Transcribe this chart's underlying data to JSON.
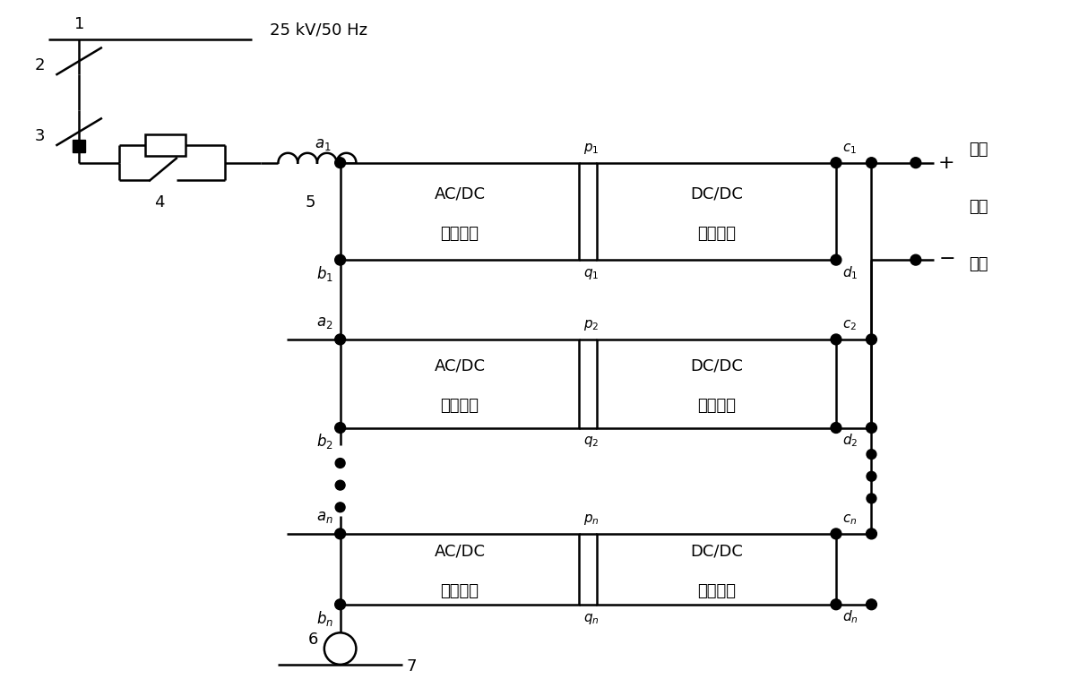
{
  "bg_color": "#ffffff",
  "line_color": "#000000",
  "lw": 1.8,
  "fig_width": 11.94,
  "fig_height": 7.58,
  "voltage_label": "25 kV/50 Hz",
  "rows": [
    {
      "a_lbl": "a_1",
      "b_lbl": "b_1",
      "p_lbl": "p_1",
      "q_lbl": "q_1",
      "c_lbl": "c_1",
      "d_lbl": "d_1"
    },
    {
      "a_lbl": "a_2",
      "b_lbl": "b_2",
      "p_lbl": "p_2",
      "q_lbl": "q_2",
      "c_lbl": "c_2",
      "d_lbl": "d_2"
    },
    {
      "a_lbl": "a_n",
      "b_lbl": "b_n",
      "p_lbl": "p_n",
      "q_lbl": "q_n",
      "c_lbl": "c_n",
      "d_lbl": "d_n"
    }
  ],
  "acdc_text1": "AC/DC",
  "acdc_text2": "变换单元",
  "dcdc_text1": "DC/DC",
  "dcdc_text2": "变换单元",
  "out_text": [
    "输出",
    "直流",
    "电压"
  ]
}
